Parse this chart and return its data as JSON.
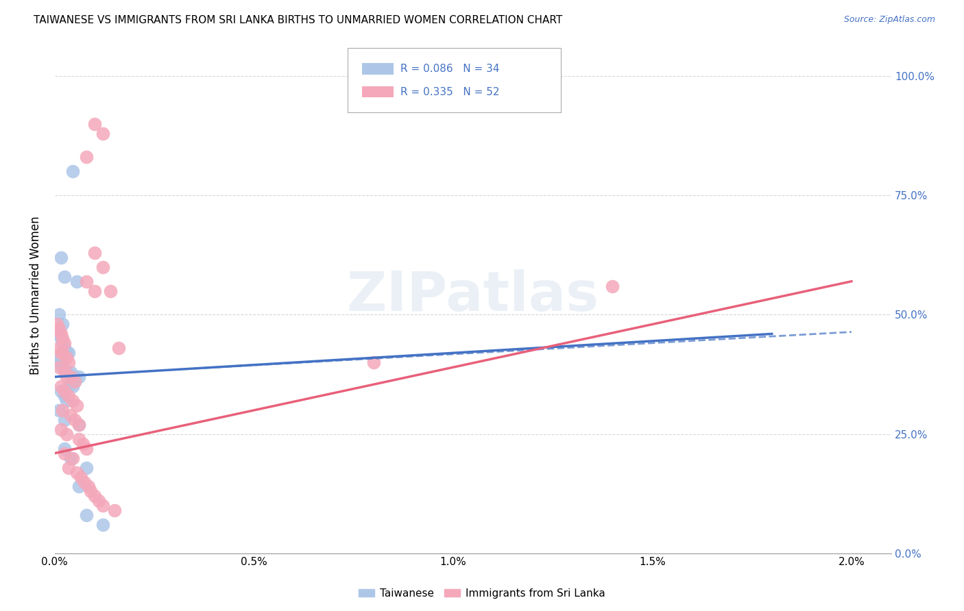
{
  "title": "TAIWANESE VS IMMIGRANTS FROM SRI LANKA BIRTHS TO UNMARRIED WOMEN CORRELATION CHART",
  "source": "Source: ZipAtlas.com",
  "ylabel": "Births to Unmarried Women",
  "xlabel_ticks": [
    "0.0%",
    "0.5%",
    "1.0%",
    "1.5%",
    "2.0%"
  ],
  "xlabel_vals": [
    0.0,
    0.005,
    0.01,
    0.015,
    0.02
  ],
  "ylabel_ticks": [
    "0.0%",
    "25.0%",
    "50.0%",
    "75.0%",
    "100.0%"
  ],
  "ylabel_vals": [
    0.0,
    0.25,
    0.5,
    0.75,
    1.0
  ],
  "xmin": 0.0,
  "xmax": 0.021,
  "ymin": 0.0,
  "ymax": 1.08,
  "legend_blue_label": "Taiwanese",
  "legend_pink_label": "Immigrants from Sri Lanka",
  "R_blue": "0.086",
  "N_blue": "34",
  "R_pink": "0.335",
  "N_pink": "52",
  "blue_color": "#adc6e8",
  "pink_color": "#f4a8ba",
  "blue_line_color": "#4472c4",
  "pink_line_color": "#e8607a",
  "blue_scatter": [
    [
      0.00045,
      0.8
    ],
    [
      0.00015,
      0.62
    ],
    [
      0.00025,
      0.58
    ],
    [
      0.00055,
      0.57
    ],
    [
      0.0001,
      0.5
    ],
    [
      0.0002,
      0.48
    ],
    [
      0.0001,
      0.46
    ],
    [
      0.00015,
      0.45
    ],
    [
      0.0002,
      0.44
    ],
    [
      0.00025,
      0.43
    ],
    [
      0.0003,
      0.42
    ],
    [
      0.00035,
      0.42
    ],
    [
      5e-05,
      0.41
    ],
    [
      0.0001,
      0.4
    ],
    [
      0.0002,
      0.39
    ],
    [
      0.0003,
      0.38
    ],
    [
      0.0004,
      0.38
    ],
    [
      0.0005,
      0.37
    ],
    [
      0.0006,
      0.37
    ],
    [
      0.0005,
      0.36
    ],
    [
      0.00035,
      0.35
    ],
    [
      0.00045,
      0.35
    ],
    [
      0.00015,
      0.34
    ],
    [
      0.00025,
      0.33
    ],
    [
      0.0003,
      0.32
    ],
    [
      0.0001,
      0.3
    ],
    [
      0.00025,
      0.28
    ],
    [
      0.0006,
      0.27
    ],
    [
      0.00025,
      0.22
    ],
    [
      0.0004,
      0.2
    ],
    [
      0.0008,
      0.18
    ],
    [
      0.0006,
      0.14
    ],
    [
      0.0008,
      0.08
    ],
    [
      0.0012,
      0.06
    ]
  ],
  "pink_scatter": [
    [
      5e-05,
      0.48
    ],
    [
      0.0001,
      0.47
    ],
    [
      0.00015,
      0.46
    ],
    [
      0.0002,
      0.45
    ],
    [
      0.00025,
      0.44
    ],
    [
      0.0001,
      0.43
    ],
    [
      0.00015,
      0.42
    ],
    [
      0.0002,
      0.42
    ],
    [
      0.0003,
      0.41
    ],
    [
      0.00035,
      0.4
    ],
    [
      0.0001,
      0.39
    ],
    [
      0.00025,
      0.38
    ],
    [
      0.0003,
      0.37
    ],
    [
      0.0004,
      0.37
    ],
    [
      0.0005,
      0.36
    ],
    [
      0.00015,
      0.35
    ],
    [
      0.00025,
      0.34
    ],
    [
      0.00035,
      0.33
    ],
    [
      0.00045,
      0.32
    ],
    [
      0.00055,
      0.31
    ],
    [
      0.0002,
      0.3
    ],
    [
      0.0004,
      0.29
    ],
    [
      0.0005,
      0.28
    ],
    [
      0.0006,
      0.27
    ],
    [
      0.00015,
      0.26
    ],
    [
      0.0003,
      0.25
    ],
    [
      0.0006,
      0.24
    ],
    [
      0.0007,
      0.23
    ],
    [
      0.0008,
      0.22
    ],
    [
      0.00025,
      0.21
    ],
    [
      0.00045,
      0.2
    ],
    [
      0.00035,
      0.18
    ],
    [
      0.00055,
      0.17
    ],
    [
      0.00065,
      0.16
    ],
    [
      0.00075,
      0.15
    ],
    [
      0.00085,
      0.14
    ],
    [
      0.0009,
      0.13
    ],
    [
      0.001,
      0.12
    ],
    [
      0.0011,
      0.11
    ],
    [
      0.0012,
      0.1
    ],
    [
      0.0015,
      0.09
    ],
    [
      0.001,
      0.63
    ],
    [
      0.0012,
      0.6
    ],
    [
      0.0008,
      0.57
    ],
    [
      0.001,
      0.55
    ],
    [
      0.0014,
      0.55
    ],
    [
      0.0016,
      0.43
    ],
    [
      0.014,
      0.56
    ],
    [
      0.0008,
      0.83
    ],
    [
      0.001,
      0.9
    ],
    [
      0.0012,
      0.88
    ],
    [
      0.008,
      0.4
    ]
  ],
  "watermark": "ZIPatlas",
  "background_color": "#ffffff",
  "grid_color": "#cccccc"
}
